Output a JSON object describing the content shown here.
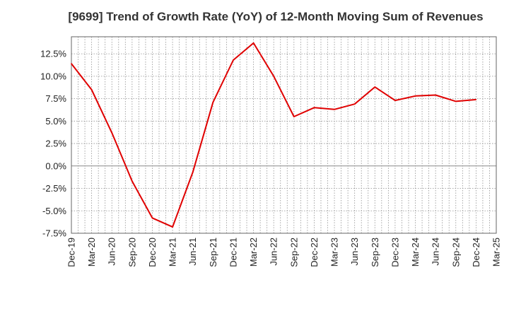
{
  "chart_data": {
    "type": "line",
    "title": "[9699]  Trend of Growth Rate (YoY) of 12-Month Moving Sum of Revenues",
    "xlabel": "",
    "ylabel": "",
    "ylim": [
      -7.5,
      14.4
    ],
    "yticks": [
      -7.5,
      -5.0,
      -2.5,
      0.0,
      2.5,
      5.0,
      7.5,
      10.0,
      12.5
    ],
    "ytick_labels": [
      "-7.5%",
      "-5.0%",
      "-2.5%",
      "0.0%",
      "2.5%",
      "5.0%",
      "7.5%",
      "10.0%",
      "12.5%"
    ],
    "x_tick_labels": [
      "Dec-19",
      "Mar-20",
      "Jun-20",
      "Sep-20",
      "Dec-20",
      "Mar-21",
      "Jun-21",
      "Sep-21",
      "Dec-21",
      "Mar-22",
      "Jun-22",
      "Sep-22",
      "Dec-22",
      "Mar-23",
      "Jun-23",
      "Sep-23",
      "Dec-23",
      "Mar-24",
      "Jun-24",
      "Sep-24",
      "Dec-24",
      "Mar-25"
    ],
    "grid": true,
    "series": [
      {
        "color": "#e00000",
        "x": [
          "Dec-19",
          "Mar-20",
          "Jun-20",
          "Sep-20",
          "Dec-20",
          "Mar-21",
          "Jun-21",
          "Sep-21",
          "Dec-21",
          "Mar-22",
          "Jun-22",
          "Sep-22",
          "Dec-22",
          "Mar-23",
          "Jun-23",
          "Sep-23",
          "Dec-23",
          "Mar-24",
          "Jun-24",
          "Sep-24",
          "Dec-24"
        ],
        "values": [
          11.4,
          8.5,
          3.7,
          -1.7,
          -5.8,
          -6.8,
          -0.7,
          7.1,
          11.8,
          13.7,
          10.0,
          5.5,
          6.5,
          6.3,
          6.9,
          8.8,
          7.3,
          7.8,
          7.9,
          7.2,
          7.4
        ]
      }
    ]
  }
}
